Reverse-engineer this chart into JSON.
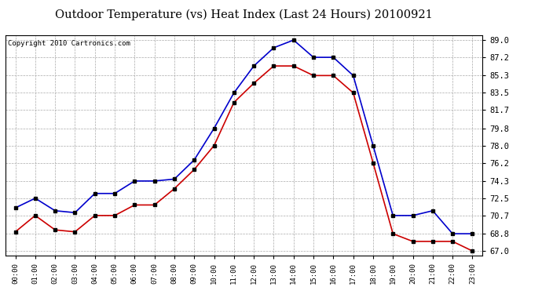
{
  "title": "Outdoor Temperature (vs) Heat Index (Last 24 Hours) 20100921",
  "copyright": "Copyright 2010 Cartronics.com",
  "hours": [
    "00:00",
    "01:00",
    "02:00",
    "03:00",
    "04:00",
    "05:00",
    "06:00",
    "07:00",
    "08:00",
    "09:00",
    "10:00",
    "11:00",
    "12:00",
    "13:00",
    "14:00",
    "15:00",
    "16:00",
    "17:00",
    "18:00",
    "19:00",
    "20:00",
    "21:00",
    "22:00",
    "23:00"
  ],
  "blue_temp": [
    71.5,
    72.5,
    71.2,
    71.0,
    73.0,
    73.0,
    74.3,
    74.3,
    74.5,
    76.5,
    79.8,
    83.5,
    86.3,
    88.2,
    89.0,
    87.2,
    87.2,
    85.3,
    78.0,
    70.7,
    70.7,
    71.2,
    68.8,
    68.8
  ],
  "red_heat": [
    69.0,
    70.7,
    69.2,
    69.0,
    70.7,
    70.7,
    71.8,
    71.8,
    73.5,
    75.5,
    78.0,
    82.5,
    84.5,
    86.3,
    86.3,
    85.3,
    85.3,
    83.5,
    76.2,
    68.8,
    68.0,
    68.0,
    68.0,
    67.0
  ],
  "yticks": [
    67.0,
    68.8,
    70.7,
    72.5,
    74.3,
    76.2,
    78.0,
    79.8,
    81.7,
    83.5,
    85.3,
    87.2,
    89.0
  ],
  "ymin": 66.5,
  "ymax": 89.5,
  "blue_color": "#0000cc",
  "red_color": "#cc0000",
  "marker_color": "#000000",
  "bg_color": "#ffffff",
  "grid_color": "#aaaaaa",
  "title_fontsize": 10.5,
  "copyright_fontsize": 6.5
}
